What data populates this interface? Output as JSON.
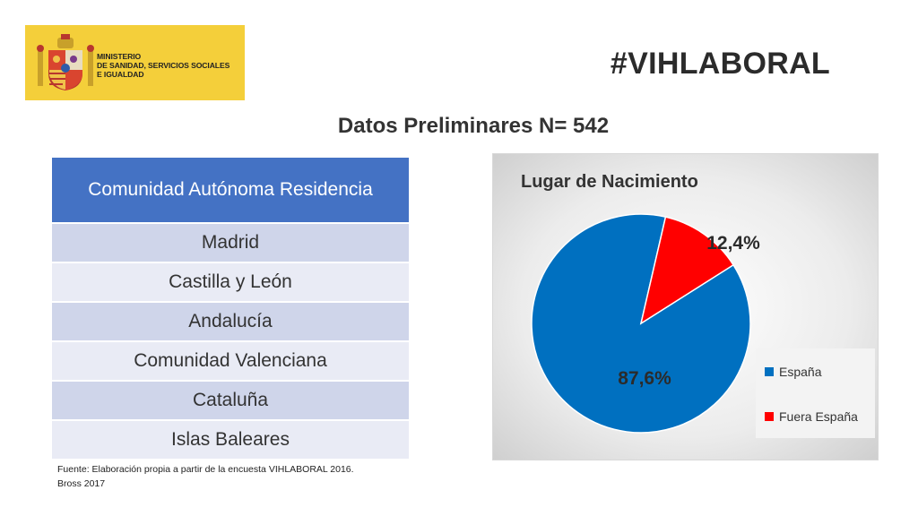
{
  "logo": {
    "line1": "MINISTERIO",
    "line2": "DE SANIDAD, SERVICIOS SOCIALES",
    "line3": "E IGUALDAD"
  },
  "header": {
    "hashtag": "#VIHLABORAL",
    "subtitle": "Datos Preliminares N= 542"
  },
  "table": {
    "header": "Comunidad Autónoma Residencia",
    "rows": [
      "Madrid",
      "Castilla y León",
      "Andalucía",
      "Comunidad Valenciana",
      "Cataluña",
      "Islas Baleares"
    ]
  },
  "source": {
    "line1": "Fuente: Elaboración propia a partir de la encuesta  VIHLABORAL 2016.",
    "line2": "Bross 2017"
  },
  "chart_data": {
    "type": "pie",
    "title": "Lugar de Nacimiento",
    "categories": [
      "España",
      "Fuera España"
    ],
    "values": [
      87.6,
      12.4
    ],
    "labels": [
      "87,6%",
      "12,4%"
    ],
    "colors": [
      "#0070c0",
      "#ff0000"
    ],
    "legend_position": "right"
  }
}
